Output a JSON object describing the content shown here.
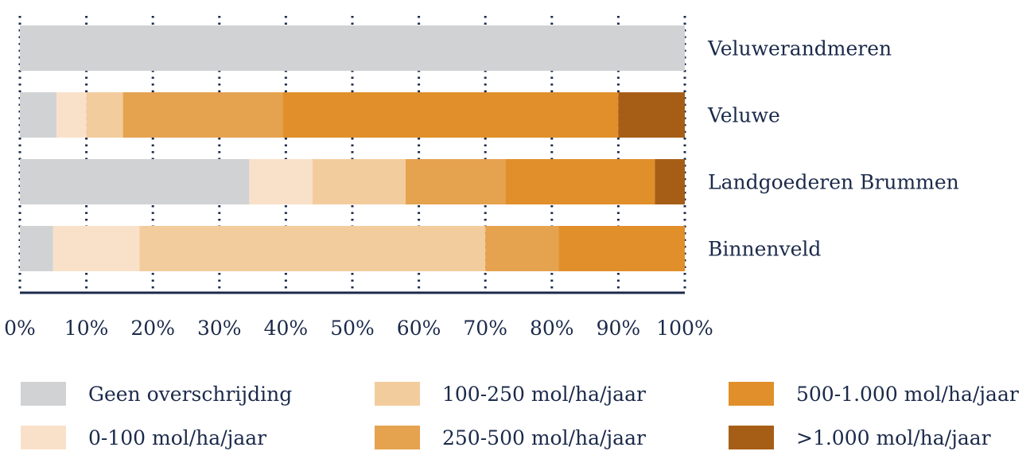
{
  "chart_data": {
    "type": "bar",
    "orientation": "horizontal",
    "stacked": true,
    "categories": [
      "Veluwerandmeren",
      "Veluwe",
      "Landgoederen Brummen",
      "Binnenveld"
    ],
    "series": [
      {
        "name": "Geen overschrijding",
        "color": "#d1d2d4",
        "values": [
          100,
          5.5,
          34.5,
          5
        ]
      },
      {
        "name": "0-100 mol/ha/jaar",
        "color": "#f9e1c9",
        "values": [
          0,
          4.5,
          9.5,
          13
        ]
      },
      {
        "name": "100-250 mol/ha/jaar",
        "color": "#f3cc9e",
        "values": [
          0,
          5.5,
          14,
          52
        ]
      },
      {
        "name": "250-500 mol/ha/jaar",
        "color": "#e5a24f",
        "values": [
          0,
          24,
          15,
          11
        ]
      },
      {
        "name": "500-1.000 mol/ha/jaar",
        "color": "#e08f2a",
        "values": [
          0,
          50.5,
          22.5,
          19
        ]
      },
      {
        "name": ">1.000 mol/ha/jaar",
        "color": "#a65e16",
        "values": [
          0,
          10,
          4.5,
          0
        ]
      }
    ],
    "xlim": [
      0,
      100
    ],
    "xticks": [
      "0%",
      "10%",
      "20%",
      "30%",
      "40%",
      "50%",
      "60%",
      "70%",
      "80%",
      "90%",
      "100%"
    ],
    "grid": true,
    "legend_position": "bottom"
  }
}
